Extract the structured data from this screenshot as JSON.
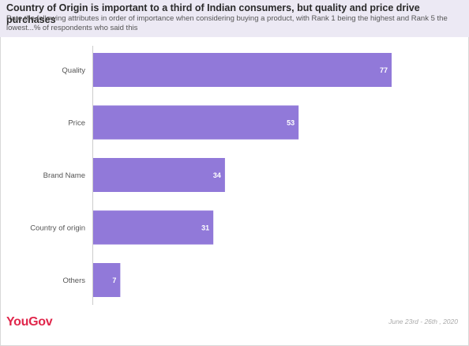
{
  "header": {
    "title": "Country of Origin is important to a third of Indian consumers, but quality and price drive purchases",
    "subtitle": "Rate the following attributes in order of importance when considering buying a product, with Rank 1 being the highest and Rank 5 the lowest...% of respondents who said this"
  },
  "footer": {
    "logo": "YouGov",
    "date": "June 23rd - 26th , 2020"
  },
  "colors": {
    "bar": "#9179d9",
    "header_bg": "#ece9f4",
    "logo": "#e0264b"
  },
  "chart_data": {
    "type": "bar",
    "orientation": "horizontal",
    "categories": [
      "Quality",
      "Price",
      "Brand Name",
      "Country of origin",
      "Others"
    ],
    "values": [
      77,
      53,
      34,
      31,
      7
    ],
    "data_labels": [
      "77",
      "53",
      "34",
      "31",
      "7"
    ],
    "xlim": [
      0,
      100
    ],
    "grid": false,
    "legend": "none"
  }
}
